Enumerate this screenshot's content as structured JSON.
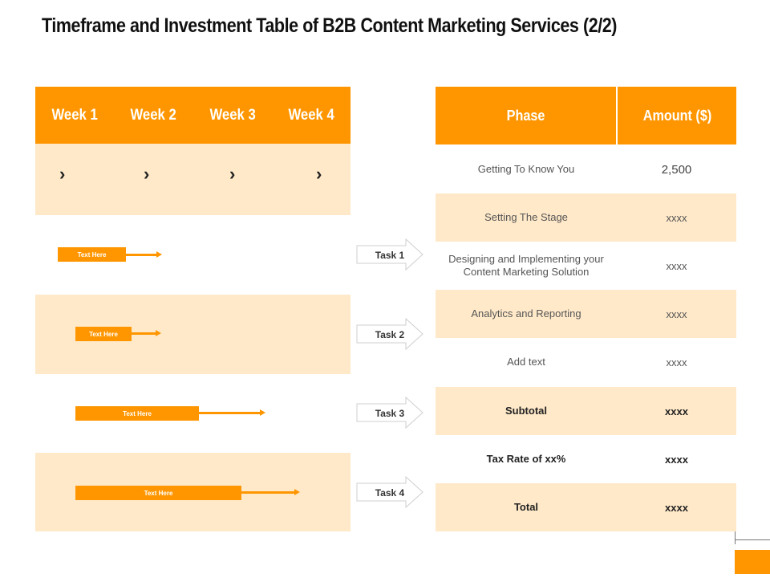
{
  "title": "Timeframe and Investment Table of B2B Content Marketing Services (2/2)",
  "timeline": {
    "weeks": [
      "Week 1",
      "Week 2",
      "Week 3",
      "Week 4"
    ],
    "tasks": [
      {
        "label": "Task 1",
        "bar_text": "Text Here"
      },
      {
        "label": "Task 2",
        "bar_text": "Text Here"
      },
      {
        "label": "Task 3",
        "bar_text": "Text Here"
      },
      {
        "label": "Task 4",
        "bar_text": "Text Here"
      }
    ]
  },
  "investment_table": {
    "headers": [
      "Phase",
      "Amount ($)"
    ],
    "rows": [
      {
        "phase": "Getting To Know You",
        "amount": "2,500"
      },
      {
        "phase": "Setting The Stage",
        "amount": "xxxx"
      },
      {
        "phase": "Designing and Implementing your Content Marketing Solution",
        "amount": "xxxx"
      },
      {
        "phase": "Analytics and Reporting",
        "amount": "xxxx"
      },
      {
        "phase": "Add text",
        "amount": "xxxx"
      },
      {
        "phase": "Subtotal",
        "amount": "xxxx"
      },
      {
        "phase": "Tax Rate of xx%",
        "amount": "xxxx"
      },
      {
        "phase": "Total",
        "amount": "xxxx"
      }
    ]
  },
  "colors": {
    "accent": "#ff9600",
    "light": "#ffe9c9"
  }
}
